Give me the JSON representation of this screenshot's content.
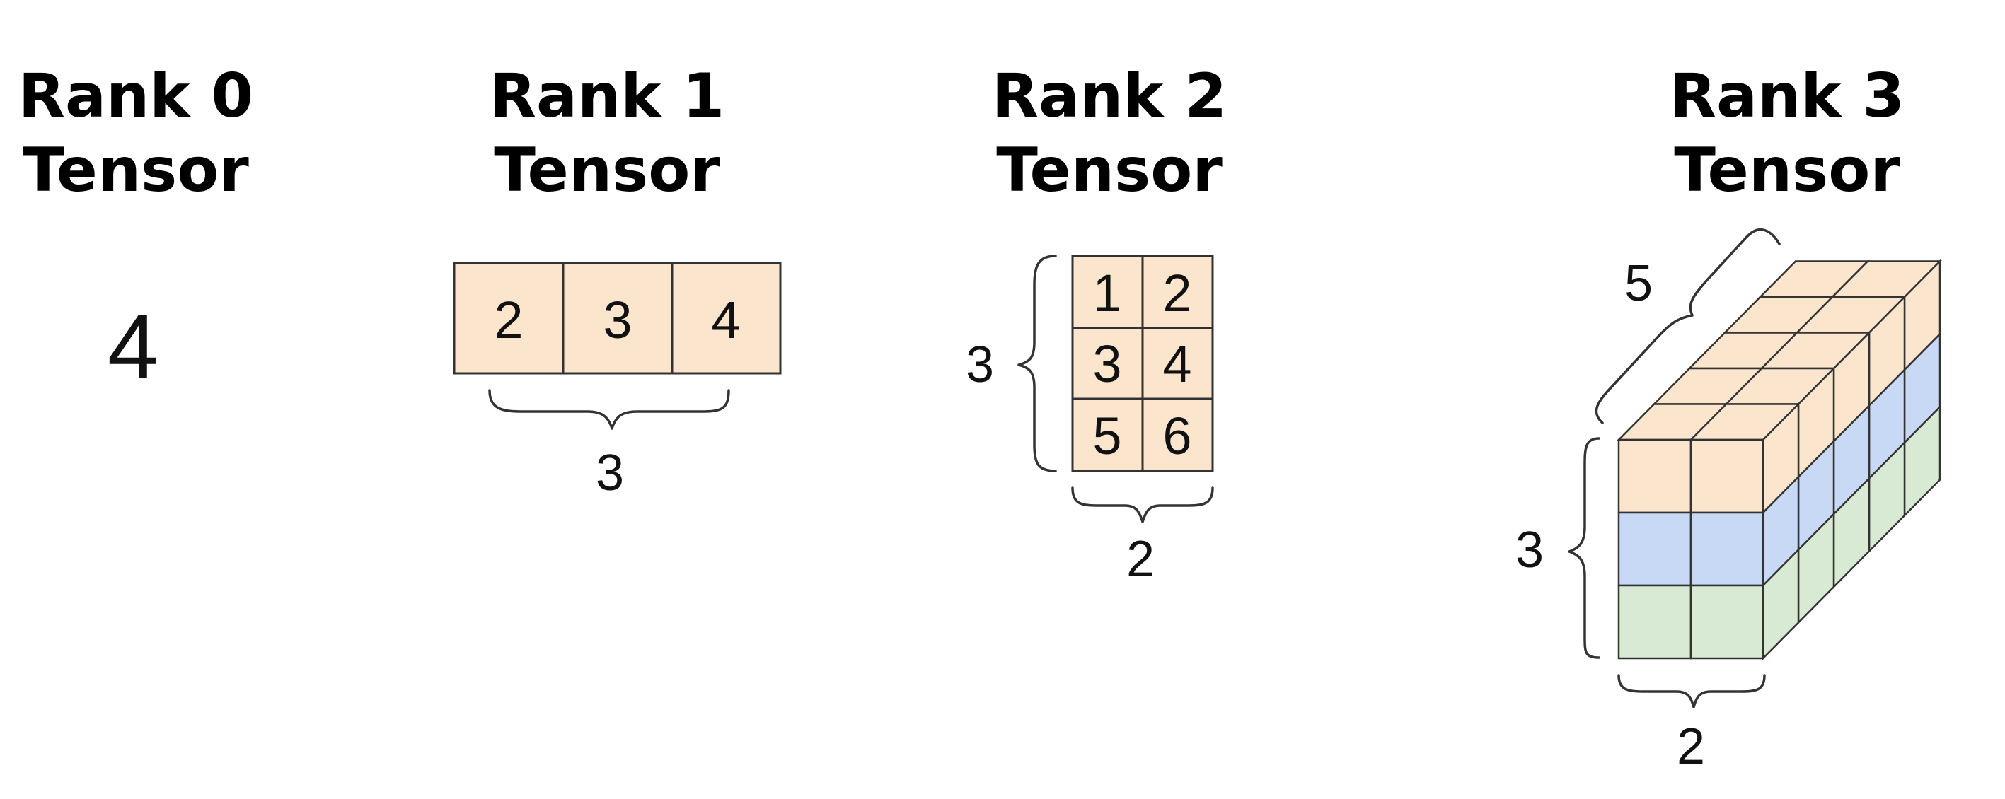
{
  "colors": {
    "peach": "#fbe5cd",
    "blue": "#c8d9f6",
    "green": "#d8ead3",
    "stroke": "#333333"
  },
  "rank0": {
    "title_line1": "Rank 0",
    "title_line2": "Tensor",
    "value": "4"
  },
  "rank1": {
    "title_line1": "Rank 1",
    "title_line2": "Tensor",
    "cells": [
      "2",
      "3",
      "4"
    ],
    "dim_label": "3"
  },
  "rank2": {
    "title_line1": "Rank 2",
    "title_line2": "Tensor",
    "cells": [
      [
        "1",
        "2"
      ],
      [
        "3",
        "4"
      ],
      [
        "5",
        "6"
      ]
    ],
    "rows_label": "3",
    "cols_label": "2"
  },
  "rank3": {
    "title_line1": "Rank 3",
    "title_line2": "Tensor",
    "depth_label": "5",
    "height_label": "3",
    "width_label": "2",
    "shape": {
      "height": 3,
      "width": 2,
      "depth": 5
    },
    "layer_colors": [
      "peach",
      "blue",
      "green"
    ]
  }
}
